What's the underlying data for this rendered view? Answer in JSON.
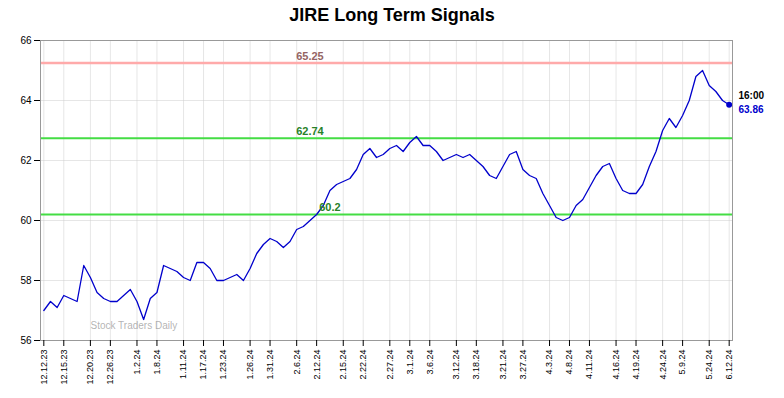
{
  "chart_data": {
    "type": "line",
    "title": "JIRE Long Term Signals",
    "watermark": "Stock Traders Daily",
    "color": "#0000cc",
    "categories": [
      "12.12.23",
      null,
      null,
      "12.15.23",
      null,
      null,
      null,
      "12.20.23",
      null,
      null,
      "12.26.23",
      null,
      null,
      null,
      "1.2.24",
      null,
      null,
      "1.8.24",
      null,
      null,
      null,
      "1.11.24",
      null,
      null,
      "1.17.24",
      null,
      null,
      "1.23.24",
      null,
      null,
      null,
      "1.26.24",
      null,
      null,
      "1.31.24",
      null,
      null,
      null,
      "2.6.24",
      null,
      null,
      "2.12.24",
      null,
      null,
      null,
      "2.15.24",
      null,
      null,
      "2.22.24",
      null,
      null,
      null,
      "2.27.24",
      null,
      null,
      "3.1.24",
      null,
      null,
      "3.6.24",
      null,
      null,
      null,
      "3.12.24",
      null,
      null,
      "3.18.24",
      null,
      null,
      null,
      "3.21.24",
      null,
      null,
      "3.27.24",
      null,
      null,
      null,
      "4.3.24",
      null,
      null,
      "4.8.24",
      null,
      null,
      "4.11.24",
      null,
      null,
      null,
      "4.16.24",
      null,
      null,
      "4.19.24",
      null,
      null,
      null,
      "4.24.24",
      null,
      null,
      "5.9.24",
      null,
      null,
      null,
      "5.24.24",
      null,
      null,
      "6.12.24"
    ],
    "values": [
      57.0,
      57.3,
      57.1,
      57.5,
      57.4,
      57.3,
      58.5,
      58.1,
      57.6,
      57.4,
      57.3,
      57.3,
      57.5,
      57.7,
      57.3,
      56.7,
      57.4,
      57.6,
      58.5,
      58.4,
      58.3,
      58.1,
      58.0,
      58.6,
      58.6,
      58.4,
      58.0,
      58.0,
      58.1,
      58.2,
      58.0,
      58.4,
      58.9,
      59.2,
      59.4,
      59.3,
      59.1,
      59.3,
      59.7,
      59.8,
      60.0,
      60.2,
      60.5,
      61.0,
      61.2,
      61.3,
      61.4,
      61.7,
      62.2,
      62.4,
      62.1,
      62.2,
      62.4,
      62.5,
      62.3,
      62.6,
      62.8,
      62.5,
      62.5,
      62.3,
      62.0,
      62.1,
      62.2,
      62.1,
      62.2,
      62.0,
      61.8,
      61.5,
      61.4,
      61.8,
      62.2,
      62.3,
      61.7,
      61.5,
      61.4,
      60.9,
      60.5,
      60.1,
      60.0,
      60.1,
      60.5,
      60.7,
      61.1,
      61.5,
      61.8,
      61.9,
      61.4,
      61.0,
      60.9,
      60.9,
      61.2,
      61.8,
      62.3,
      63.0,
      63.4,
      63.1,
      63.5,
      64.0,
      64.8,
      65.0,
      64.5,
      64.3,
      64.0,
      63.86
    ],
    "reference_lines": [
      {
        "value": 65.25,
        "label": "65.25",
        "color": "#ffaaaa"
      },
      {
        "value": 62.74,
        "label": "62.74",
        "color": "#44dd44"
      },
      {
        "value": 60.2,
        "label": "60.2",
        "color": "#44dd44"
      }
    ],
    "last_point": {
      "value": 63.86,
      "label": "63.86",
      "time": "16:00"
    },
    "ylim": [
      56,
      66
    ],
    "yticks": [
      56,
      58,
      60,
      62,
      64,
      66
    ],
    "grid": true
  }
}
